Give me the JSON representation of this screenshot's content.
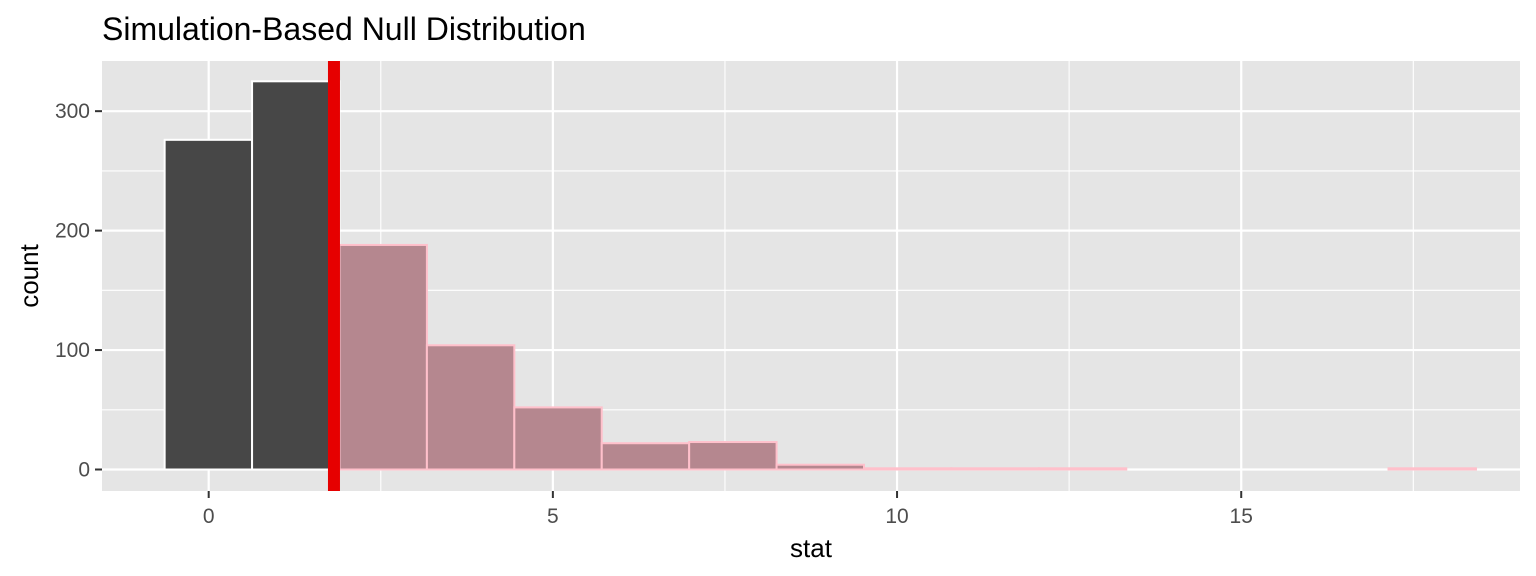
{
  "chart_data": {
    "type": "bar",
    "title": "Simulation-Based Null Distribution",
    "xlabel": "stat",
    "ylabel": "count",
    "xlim": [
      -1.55,
      19.05
    ],
    "ylim": [
      -18,
      342
    ],
    "x_ticks": [
      0,
      5,
      10,
      15
    ],
    "x_tick_labels": [
      "0",
      "5",
      "10",
      "15"
    ],
    "y_ticks": [
      0,
      100,
      200,
      300
    ],
    "y_tick_labels": [
      "0",
      "100",
      "200",
      "300"
    ],
    "grid": true,
    "bin_width": 1.27,
    "bins": [
      {
        "x0": -0.64,
        "x1": 0.63,
        "count": 276,
        "shaded": false
      },
      {
        "x0": 0.63,
        "x1": 1.9,
        "count": 325,
        "shaded": false
      },
      {
        "x0": 1.9,
        "x1": 3.17,
        "count": 188,
        "shaded": true
      },
      {
        "x0": 3.17,
        "x1": 4.44,
        "count": 104,
        "shaded": true
      },
      {
        "x0": 4.44,
        "x1": 5.71,
        "count": 52,
        "shaded": true
      },
      {
        "x0": 5.71,
        "x1": 6.98,
        "count": 22,
        "shaded": true
      },
      {
        "x0": 6.98,
        "x1": 8.25,
        "count": 23,
        "shaded": true
      },
      {
        "x0": 8.25,
        "x1": 9.52,
        "count": 4,
        "shaded": true
      },
      {
        "x0": 9.52,
        "x1": 10.79,
        "count": 1,
        "shaded": true
      },
      {
        "x0": 10.79,
        "x1": 12.06,
        "count": 1,
        "shaded": true
      },
      {
        "x0": 12.06,
        "x1": 13.33,
        "count": 1,
        "shaded": true
      },
      {
        "x0": 13.33,
        "x1": 14.6,
        "count": 0,
        "shaded": true
      },
      {
        "x0": 14.6,
        "x1": 15.87,
        "count": 0,
        "shaded": true
      },
      {
        "x0": 15.87,
        "x1": 17.14,
        "count": 0,
        "shaded": true
      },
      {
        "x0": 17.14,
        "x1": 18.41,
        "count": 1,
        "shaded": true
      }
    ],
    "observed_stat": 1.82,
    "colors": {
      "panel_background": "#e5e5e5",
      "gridline": "#ffffff",
      "bar_fill": "#474747",
      "bar_outline": "#ffffff",
      "shade_fill": "#b5878f",
      "shade_outline": "#ffc0cb",
      "observed_line": "#e60000"
    }
  }
}
